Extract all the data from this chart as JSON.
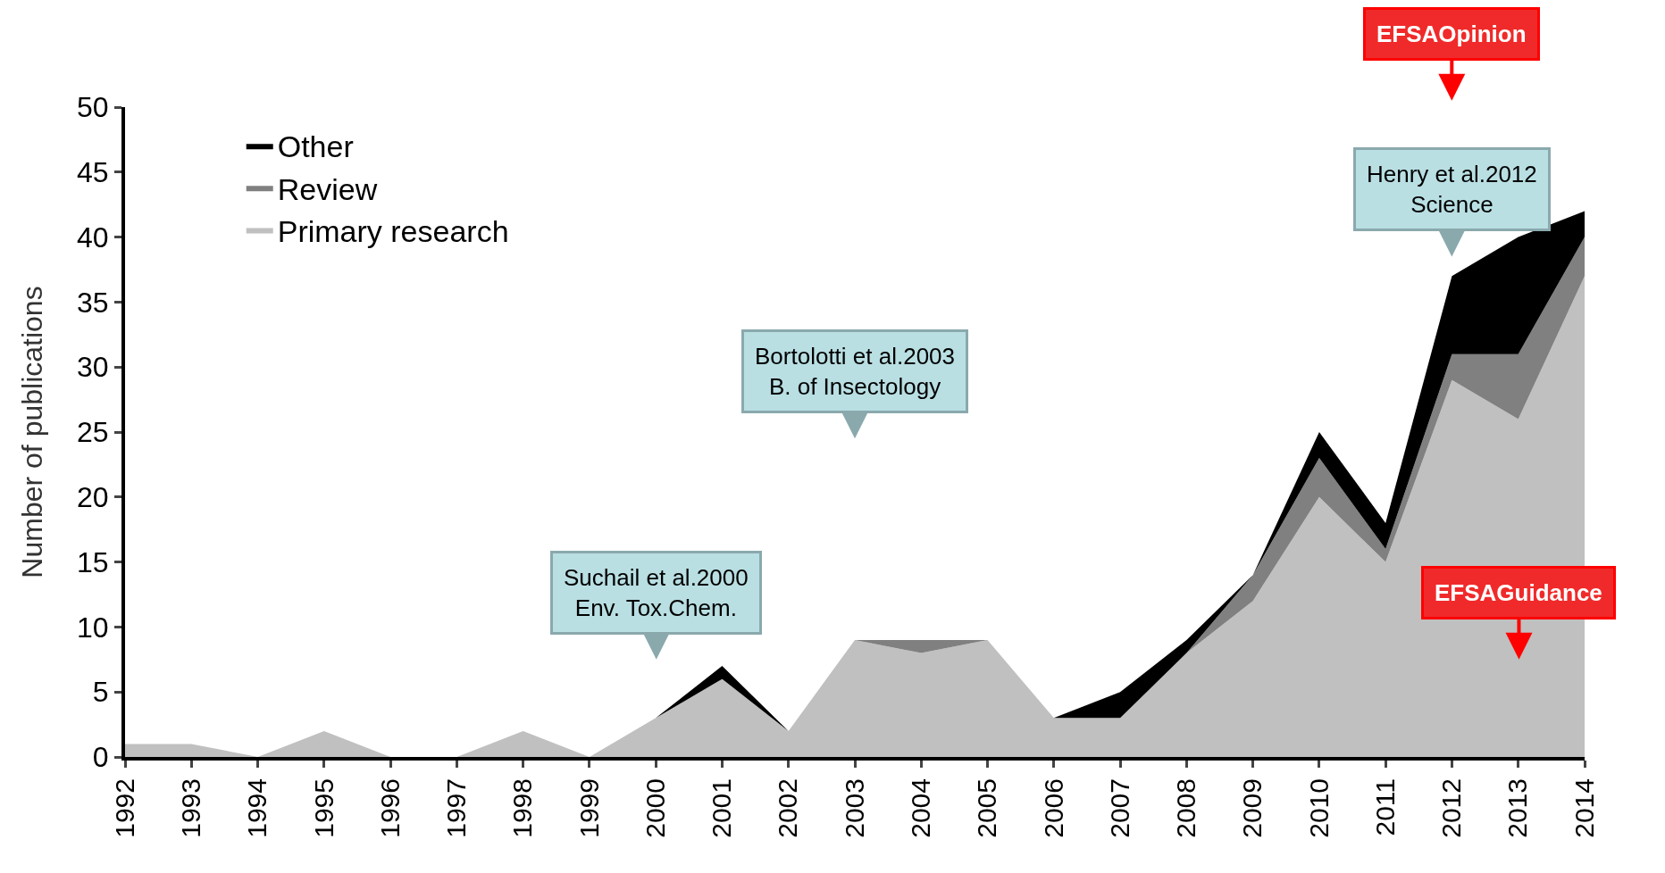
{
  "chart_data": {
    "type": "area",
    "stacked": true,
    "ylabel": "Number of publications",
    "categories": [
      "1992",
      "1993",
      "1994",
      "1995",
      "1996",
      "1997",
      "1998",
      "1999",
      "2000",
      "2001",
      "2002",
      "2003",
      "2004",
      "2005",
      "2006",
      "2007",
      "2008",
      "2009",
      "2010",
      "2011",
      "2012",
      "2013",
      "2014"
    ],
    "series": [
      {
        "name": "Primary research",
        "color": "#c0c0c0",
        "values": [
          1,
          1,
          0,
          2,
          0,
          0,
          2,
          0,
          3,
          6,
          2,
          9,
          8,
          9,
          3,
          3,
          8,
          12,
          20,
          15,
          29,
          26,
          37
        ]
      },
      {
        "name": "Review",
        "color": "#808080",
        "values": [
          0,
          0,
          0,
          0,
          0,
          0,
          0,
          0,
          0,
          0,
          0,
          0,
          1,
          0,
          0,
          0,
          0,
          2,
          3,
          1,
          2,
          5,
          3
        ]
      },
      {
        "name": "Other",
        "color": "#000000",
        "values": [
          0,
          0,
          0,
          0,
          0,
          0,
          0,
          0,
          0,
          1,
          0,
          0,
          0,
          0,
          0,
          2,
          1,
          0,
          2,
          2,
          6,
          9,
          2
        ]
      }
    ],
    "ylim": [
      0,
      50
    ],
    "yticks": [
      0,
      5,
      10,
      15,
      20,
      25,
      30,
      35,
      40,
      45,
      50
    ],
    "legend": "top left",
    "annotations": [
      "Suchail et al.2000\nEnv. Tox.Chem.",
      "Bortolotti et al.2003\nB. of Insectology",
      "Henry et al.2012\nScience",
      "EFSAOpinion",
      "EFSAGuidance"
    ]
  }
}
